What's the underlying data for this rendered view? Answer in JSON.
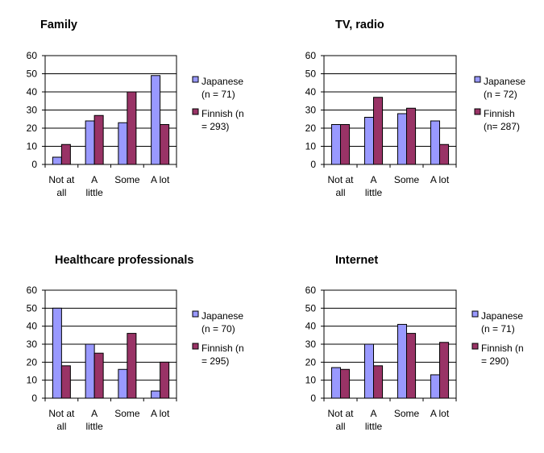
{
  "chart_data": [
    {
      "type": "bar",
      "title": "Family",
      "categories": [
        [
          "Not at",
          "all"
        ],
        [
          "A",
          "little"
        ],
        [
          "Some"
        ],
        [
          "A lot"
        ]
      ],
      "series": [
        {
          "name": [
            "Japanese",
            "(n = 71)"
          ],
          "color": "#9999ff",
          "values": [
            4,
            24,
            23,
            49
          ]
        },
        {
          "name": [
            "Finnish (n",
            "= 293)"
          ],
          "color": "#993366",
          "values": [
            11,
            27,
            40,
            22
          ]
        }
      ],
      "ylim": [
        0,
        60
      ],
      "yticks": [
        0,
        10,
        20,
        30,
        40,
        50,
        60
      ],
      "grid": true,
      "legend": "right"
    },
    {
      "type": "bar",
      "title": "TV, radio",
      "categories": [
        [
          "Not at",
          "all"
        ],
        [
          "A",
          "little"
        ],
        [
          "Some"
        ],
        [
          "A lot"
        ]
      ],
      "series": [
        {
          "name": [
            "Japanese",
            "(n = 72)"
          ],
          "color": "#9999ff",
          "values": [
            22,
            26,
            28,
            24
          ]
        },
        {
          "name": [
            "Finnish",
            "(n= 287)"
          ],
          "color": "#993366",
          "values": [
            22,
            37,
            31,
            11
          ]
        }
      ],
      "ylim": [
        0,
        60
      ],
      "yticks": [
        0,
        10,
        20,
        30,
        40,
        50,
        60
      ],
      "grid": true,
      "legend": "right"
    },
    {
      "type": "bar",
      "title": "Healthcare professionals",
      "categories": [
        [
          "Not at",
          "all"
        ],
        [
          "A",
          "little"
        ],
        [
          "Some"
        ],
        [
          "A lot"
        ]
      ],
      "series": [
        {
          "name": [
            "Japanese",
            "(n = 70)"
          ],
          "color": "#9999ff",
          "values": [
            50,
            30,
            16,
            4
          ]
        },
        {
          "name": [
            "Finnish (n",
            "= 295)"
          ],
          "color": "#993366",
          "values": [
            18,
            25,
            36,
            20
          ]
        }
      ],
      "ylim": [
        0,
        60
      ],
      "yticks": [
        0,
        10,
        20,
        30,
        40,
        50,
        60
      ],
      "grid": true,
      "legend": "right"
    },
    {
      "type": "bar",
      "title": "Internet",
      "categories": [
        [
          "Not at",
          "all"
        ],
        [
          "A",
          "little"
        ],
        [
          "Some"
        ],
        [
          "A lot"
        ]
      ],
      "series": [
        {
          "name": [
            "Japanese",
            "(n = 71)"
          ],
          "color": "#9999ff",
          "values": [
            17,
            30,
            41,
            13
          ]
        },
        {
          "name": [
            "Finnish (n",
            "= 290)"
          ],
          "color": "#993366",
          "values": [
            16,
            18,
            36,
            31
          ]
        }
      ],
      "ylim": [
        0,
        60
      ],
      "yticks": [
        0,
        10,
        20,
        30,
        40,
        50,
        60
      ],
      "grid": true,
      "legend": "right"
    }
  ]
}
